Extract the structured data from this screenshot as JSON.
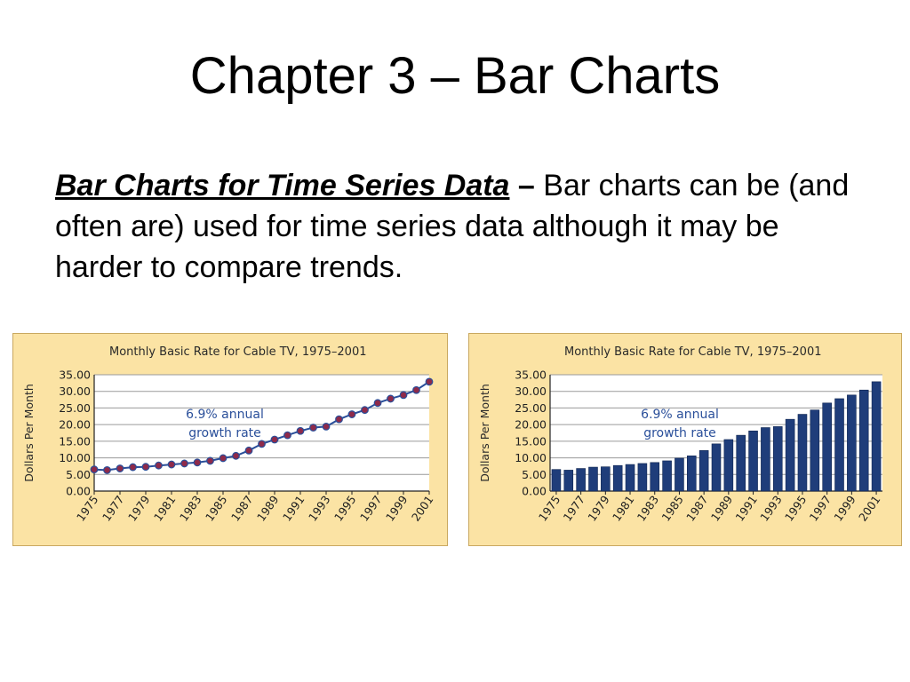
{
  "slide": {
    "title": "Chapter 3 – Bar Charts",
    "body_lead": "Bar Charts for Time Series Data",
    "body_dash": " – ",
    "body_rest": "Bar charts can be (and often are) used for time series data although it may be harder to compare trends."
  },
  "colors": {
    "panel_bg": "#fbe3a4",
    "bar_fill": "#1f3d7a",
    "line": "#2a4f9a",
    "marker": "#8e2a4a",
    "annotation": "#2a4f9a"
  },
  "chart_data": [
    {
      "type": "line",
      "title": "Monthly Basic Rate for Cable TV, 1975–2001",
      "xlabel": "",
      "ylabel": "Dollars Per Month",
      "ylim": [
        0,
        35
      ],
      "yticks": [
        "35.00",
        "30.00",
        "25.00",
        "20.00",
        "15.00",
        "10.00",
        "5.00",
        "0.00"
      ],
      "xticks": [
        "1975",
        "1977",
        "1979",
        "1981",
        "1983",
        "1985",
        "1987",
        "1989",
        "1991",
        "1993",
        "1995",
        "1997",
        "1999",
        "2001"
      ],
      "annotation": [
        "6.9% annual",
        "growth rate"
      ],
      "grid": true,
      "x": [
        1975,
        1976,
        1977,
        1978,
        1979,
        1980,
        1981,
        1982,
        1983,
        1984,
        1985,
        1986,
        1987,
        1988,
        1989,
        1990,
        1991,
        1992,
        1993,
        1994,
        1995,
        1996,
        1997,
        1998,
        1999,
        2000,
        2001
      ],
      "values": [
        6.5,
        6.3,
        6.8,
        7.2,
        7.3,
        7.7,
        8.0,
        8.3,
        8.6,
        9.1,
        9.9,
        10.6,
        12.2,
        14.2,
        15.5,
        16.8,
        18.1,
        19.1,
        19.4,
        21.6,
        23.1,
        24.4,
        26.5,
        27.8,
        28.9,
        30.4,
        32.9
      ]
    },
    {
      "type": "bar",
      "title": "Monthly Basic Rate for Cable TV, 1975–2001",
      "xlabel": "",
      "ylabel": "Dollars Per Month",
      "ylim": [
        0,
        35
      ],
      "yticks": [
        "35.00",
        "30.00",
        "25.00",
        "20.00",
        "15.00",
        "10.00",
        "5.00",
        "0.00"
      ],
      "xticks": [
        "1975",
        "1977",
        "1979",
        "1981",
        "1983",
        "1985",
        "1987",
        "1989",
        "1991",
        "1993",
        "1995",
        "1997",
        "1999",
        "2001"
      ],
      "annotation": [
        "6.9% annual",
        "growth rate"
      ],
      "grid": true,
      "x": [
        1975,
        1976,
        1977,
        1978,
        1979,
        1980,
        1981,
        1982,
        1983,
        1984,
        1985,
        1986,
        1987,
        1988,
        1989,
        1990,
        1991,
        1992,
        1993,
        1994,
        1995,
        1996,
        1997,
        1998,
        1999,
        2000,
        2001
      ],
      "values": [
        6.5,
        6.3,
        6.8,
        7.2,
        7.3,
        7.7,
        8.0,
        8.3,
        8.6,
        9.1,
        9.9,
        10.6,
        12.2,
        14.2,
        15.5,
        16.8,
        18.1,
        19.1,
        19.4,
        21.6,
        23.1,
        24.4,
        26.5,
        27.8,
        28.9,
        30.4,
        32.9
      ]
    }
  ]
}
